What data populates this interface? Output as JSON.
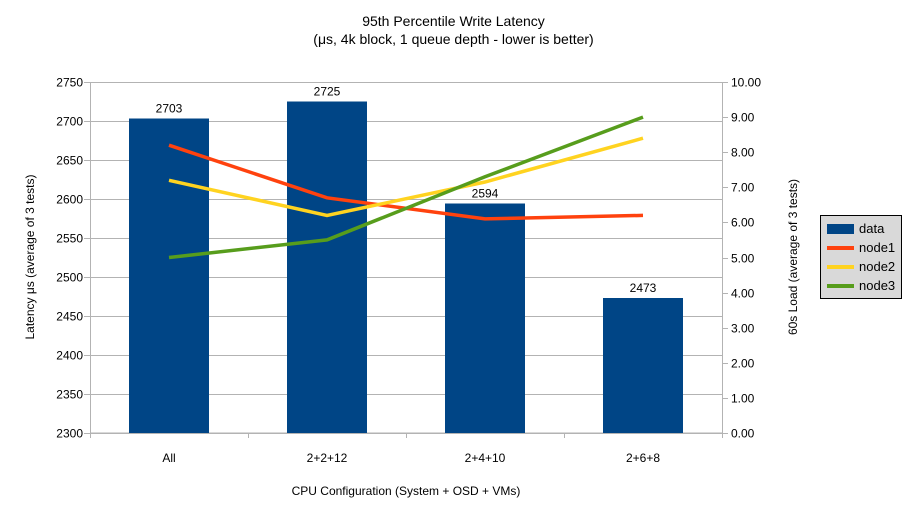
{
  "title": {
    "line1": "95th Percentile Write Latency",
    "line2": "(μs, 4k block, 1 queue depth - lower is better)"
  },
  "chart_data": {
    "type": "bar",
    "subtype": "combo-bar-line-dual-axis",
    "categories": [
      "All",
      "2+2+12",
      "2+4+10",
      "2+6+8"
    ],
    "bar_series": {
      "name": "data",
      "axis": "left",
      "color": "#004586",
      "values": [
        2703,
        2725,
        2594,
        2473
      ],
      "data_labels": [
        "2703",
        "2725",
        "2594",
        "2473"
      ]
    },
    "line_series": [
      {
        "name": "node1",
        "axis": "right",
        "color": "#ff420e",
        "values": [
          8.2,
          6.7,
          6.1,
          6.2
        ]
      },
      {
        "name": "node2",
        "axis": "right",
        "color": "#ffd320",
        "values": [
          7.2,
          6.2,
          7.15,
          8.4
        ]
      },
      {
        "name": "node3",
        "axis": "right",
        "color": "#579d1c",
        "values": [
          5.0,
          5.5,
          7.3,
          9.0
        ]
      }
    ],
    "left_axis": {
      "title": "Latency μs (average of 3 tests)",
      "min": 2300,
      "max": 2750,
      "step": 50,
      "tick_labels": [
        "2300",
        "2350",
        "2400",
        "2450",
        "2500",
        "2550",
        "2600",
        "2650",
        "2700",
        "2750"
      ]
    },
    "right_axis": {
      "title": "60s Load (average of 3 tests)",
      "min": 0,
      "max": 10,
      "step": 1,
      "tick_labels": [
        "0.00",
        "1.00",
        "2.00",
        "3.00",
        "4.00",
        "5.00",
        "6.00",
        "7.00",
        "8.00",
        "9.00",
        "10.00"
      ]
    },
    "x_axis": {
      "title": "CPU Configuration (System + OSD + VMs)"
    },
    "grid": "horizontal-only",
    "legend_position": "right",
    "legend": {
      "items": [
        {
          "label": "data",
          "swatch": "box",
          "color": "#004586"
        },
        {
          "label": "node1",
          "swatch": "line",
          "color": "#ff420e"
        },
        {
          "label": "node2",
          "swatch": "line",
          "color": "#ffd320"
        },
        {
          "label": "node3",
          "swatch": "line",
          "color": "#579d1c"
        }
      ]
    }
  },
  "colors": {
    "background": "#ffffff",
    "grid": "#b3b3b3",
    "axis": "#b3b3b3",
    "text": "#000000",
    "legend_bg": "#d9d9d9",
    "legend_border": "#000000"
  }
}
